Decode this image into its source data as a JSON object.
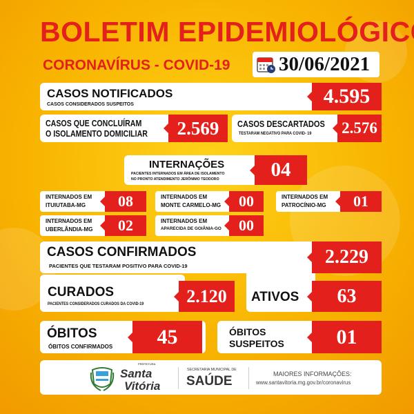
{
  "header": {
    "title": "BOLETIM EPIDEMIOLÓGICO",
    "subtitle": "CORONAVÍRUS - COVID-19",
    "date": "30/06/2021"
  },
  "notificados": {
    "title": "CASOS NOTIFICADOS",
    "desc": "CASOS CONSIDERADOS SUSPEITOS",
    "value": "4.595"
  },
  "isolamento": {
    "line1": "CASOS QUE CONCLUÍRAM",
    "line2": "O ISOLAMENTO DOMICILIAR",
    "value": "2.569"
  },
  "descartados": {
    "title": "CASOS DESCARTADOS",
    "desc": "TESTARAM NEGATIVO PARA COVID- 19",
    "value": "2.576"
  },
  "internacoes": {
    "title": "INTERNAÇÕES",
    "desc1": "PACIENTES INTERNADOS EM ÁREA DE ISOLAMENTO",
    "desc2": "NO PRONTO ATENDIMENTO JERÔNIMO TEODORO",
    "value": "04"
  },
  "internados": [
    {
      "line1": "INTERNADOS EM",
      "line2": "ITUIUTABA-MG",
      "value": "08"
    },
    {
      "line1": "INTERNADOS EM",
      "line2": "MONTE CARMELO-MG",
      "value": "00"
    },
    {
      "line1": "INTERNADOS EM",
      "line2": "PATROCÍNIO-MG",
      "value": "01"
    },
    {
      "line1": "INTERNADOS EM",
      "line2": "UBERLÂNDIA-MG",
      "value": "02"
    },
    {
      "line1": "INTERNADOS EM",
      "line2": "APARECIDA DE GOIÂNIA-GO",
      "value": "00"
    }
  ],
  "confirmados": {
    "title": "CASOS CONFIRMADOS",
    "desc": "PACIENTES QUE TESTARAM POSITIVO PARA COVID-19",
    "value": "2.229"
  },
  "curados": {
    "title": "CURADOS",
    "desc": "PACIENTES CONSIDERADOS CURADOS DA COVID-19",
    "value": "2.120"
  },
  "ativos": {
    "title": "ATIVOS",
    "value": "63"
  },
  "obitos": {
    "title": "ÓBITOS",
    "desc": "ÓBITOS CONFIRMADOS",
    "value": "45"
  },
  "suspeitos": {
    "line1": "ÓBITOS",
    "line2": "SUSPEITOS",
    "value": "01"
  },
  "footer": {
    "prefeitura": "PREFEITURA",
    "city1": "Santa",
    "city2": "Vitória",
    "secretaria": "SECRETARIA MUNICIPAL DE",
    "saude": "SAÚDE",
    "info": "MAIORES INFORMAÇÕES:",
    "url": "www.santavitoria.mg.gov.br/coronavirus"
  },
  "colors": {
    "red": "#e3201b",
    "yellow": "#f8b400"
  },
  "icons": {
    "date": "calendar-clock-icon",
    "logo": "city-coat-of-arms"
  }
}
